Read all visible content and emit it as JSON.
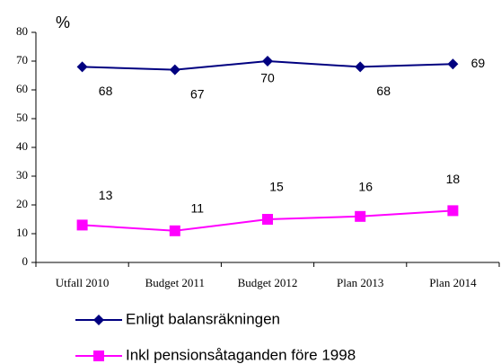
{
  "chart_data": {
    "type": "line",
    "y_label": "%",
    "categories": [
      "Utfall 2010",
      "Budget 2011",
      "Budget 2012",
      "Plan 2013",
      "Plan 2014"
    ],
    "series": [
      {
        "name": "Enligt balansräkningen",
        "color": "#000080",
        "marker": "diamond",
        "values": [
          68,
          67,
          70,
          68,
          69
        ]
      },
      {
        "name": "Inkl pensionsåtaganden före 1998",
        "color": "#ff00ff",
        "marker": "square",
        "values": [
          13,
          11,
          15,
          16,
          18
        ]
      }
    ],
    "ylim": [
      0,
      80
    ],
    "yticks": [
      0,
      10,
      20,
      30,
      40,
      50,
      60,
      70,
      80
    ],
    "grid": false
  }
}
